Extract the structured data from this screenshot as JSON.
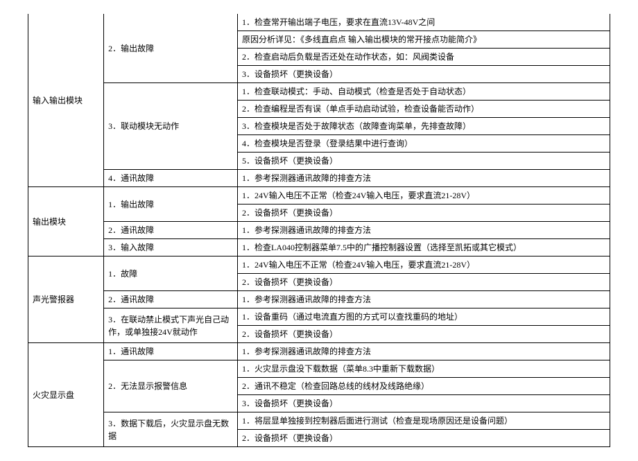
{
  "sections": [
    {
      "module": "输入输出模块",
      "groups": [
        {
          "title": "2．输出故障",
          "items": [
            "1．检查常开输出端子电压，要求在直流13V-48V之间",
            "原因分析详见：《多线直启点 输入输出模块的常开接点功能简介》",
            "2．检查启动后负载是否还处在动作状态，如：风阀类设备",
            "3．设备损坏（更换设备）"
          ]
        },
        {
          "title": "3．联动模块无动作",
          "items": [
            "1．检查联动模式：手动、自动模式（检查是否处于自动状态）",
            "2．检查编程是否有误（单点手动启动试验，检查设备能否动作）",
            "3．检查模块是否处于故障状态（故障查询菜单，先排查故障）",
            "4．检查模块是否登录（登录结果中进行查询）",
            "5．设备损坏（更换设备）"
          ]
        },
        {
          "title": "4．通讯故障",
          "items": [
            "1．参考探测器通讯故障的排查方法"
          ]
        }
      ]
    },
    {
      "module": "输出模块",
      "groups": [
        {
          "title": "1．输出故障",
          "items": [
            "1．24V输入电压不正常（检查24V输入电压，要求直流21-28V）",
            "2．设备损坏（更换设备）"
          ]
        },
        {
          "title": "2．通讯故障",
          "items": [
            "1．参考探测器通讯故障的排查方法"
          ]
        },
        {
          "title": "3．输入故障",
          "items": [
            "1．检查LA040控制器菜单7.5中的广播控制器设置（选择至凯拓或其它模式）"
          ]
        }
      ]
    },
    {
      "module": "声光警报器",
      "groups": [
        {
          "title": "1．故障",
          "items": [
            "1．24V输入电压不正常（检查24V输入电压，要求直流21-28V）",
            "2．设备损坏（更换设备）"
          ]
        },
        {
          "title": "2．通讯故障",
          "items": [
            "1．参考探测器通讯故障的排查方法"
          ]
        },
        {
          "title": "3．在联动禁止模式下声光自己动作，或单独接24V就动作",
          "items": [
            "1．设备重码（通过电流直方图的方式可以查找重码的地址）",
            "2．设备损坏（更换设备）"
          ]
        }
      ]
    },
    {
      "module": "火灾显示盘",
      "groups": [
        {
          "title": "1．通讯故障",
          "items": [
            "1．参考探测器通讯故障的排查方法"
          ]
        },
        {
          "title": "2．无法显示报警信息",
          "items": [
            "1．火灾显示盘没下载数据（菜单8.3中重新下载数据）",
            "2．通讯不稳定（检查回路总线的线材及线路绝缘）",
            "3．设备损坏（更换设备）"
          ]
        },
        {
          "title": "3．数据下载后，火灾显示盘无数据",
          "items": [
            "1．将层显单独接到控制器后面进行测试（检查是现场原因还是设备问题）",
            "2．设备损坏（更换设备）"
          ]
        }
      ]
    }
  ]
}
